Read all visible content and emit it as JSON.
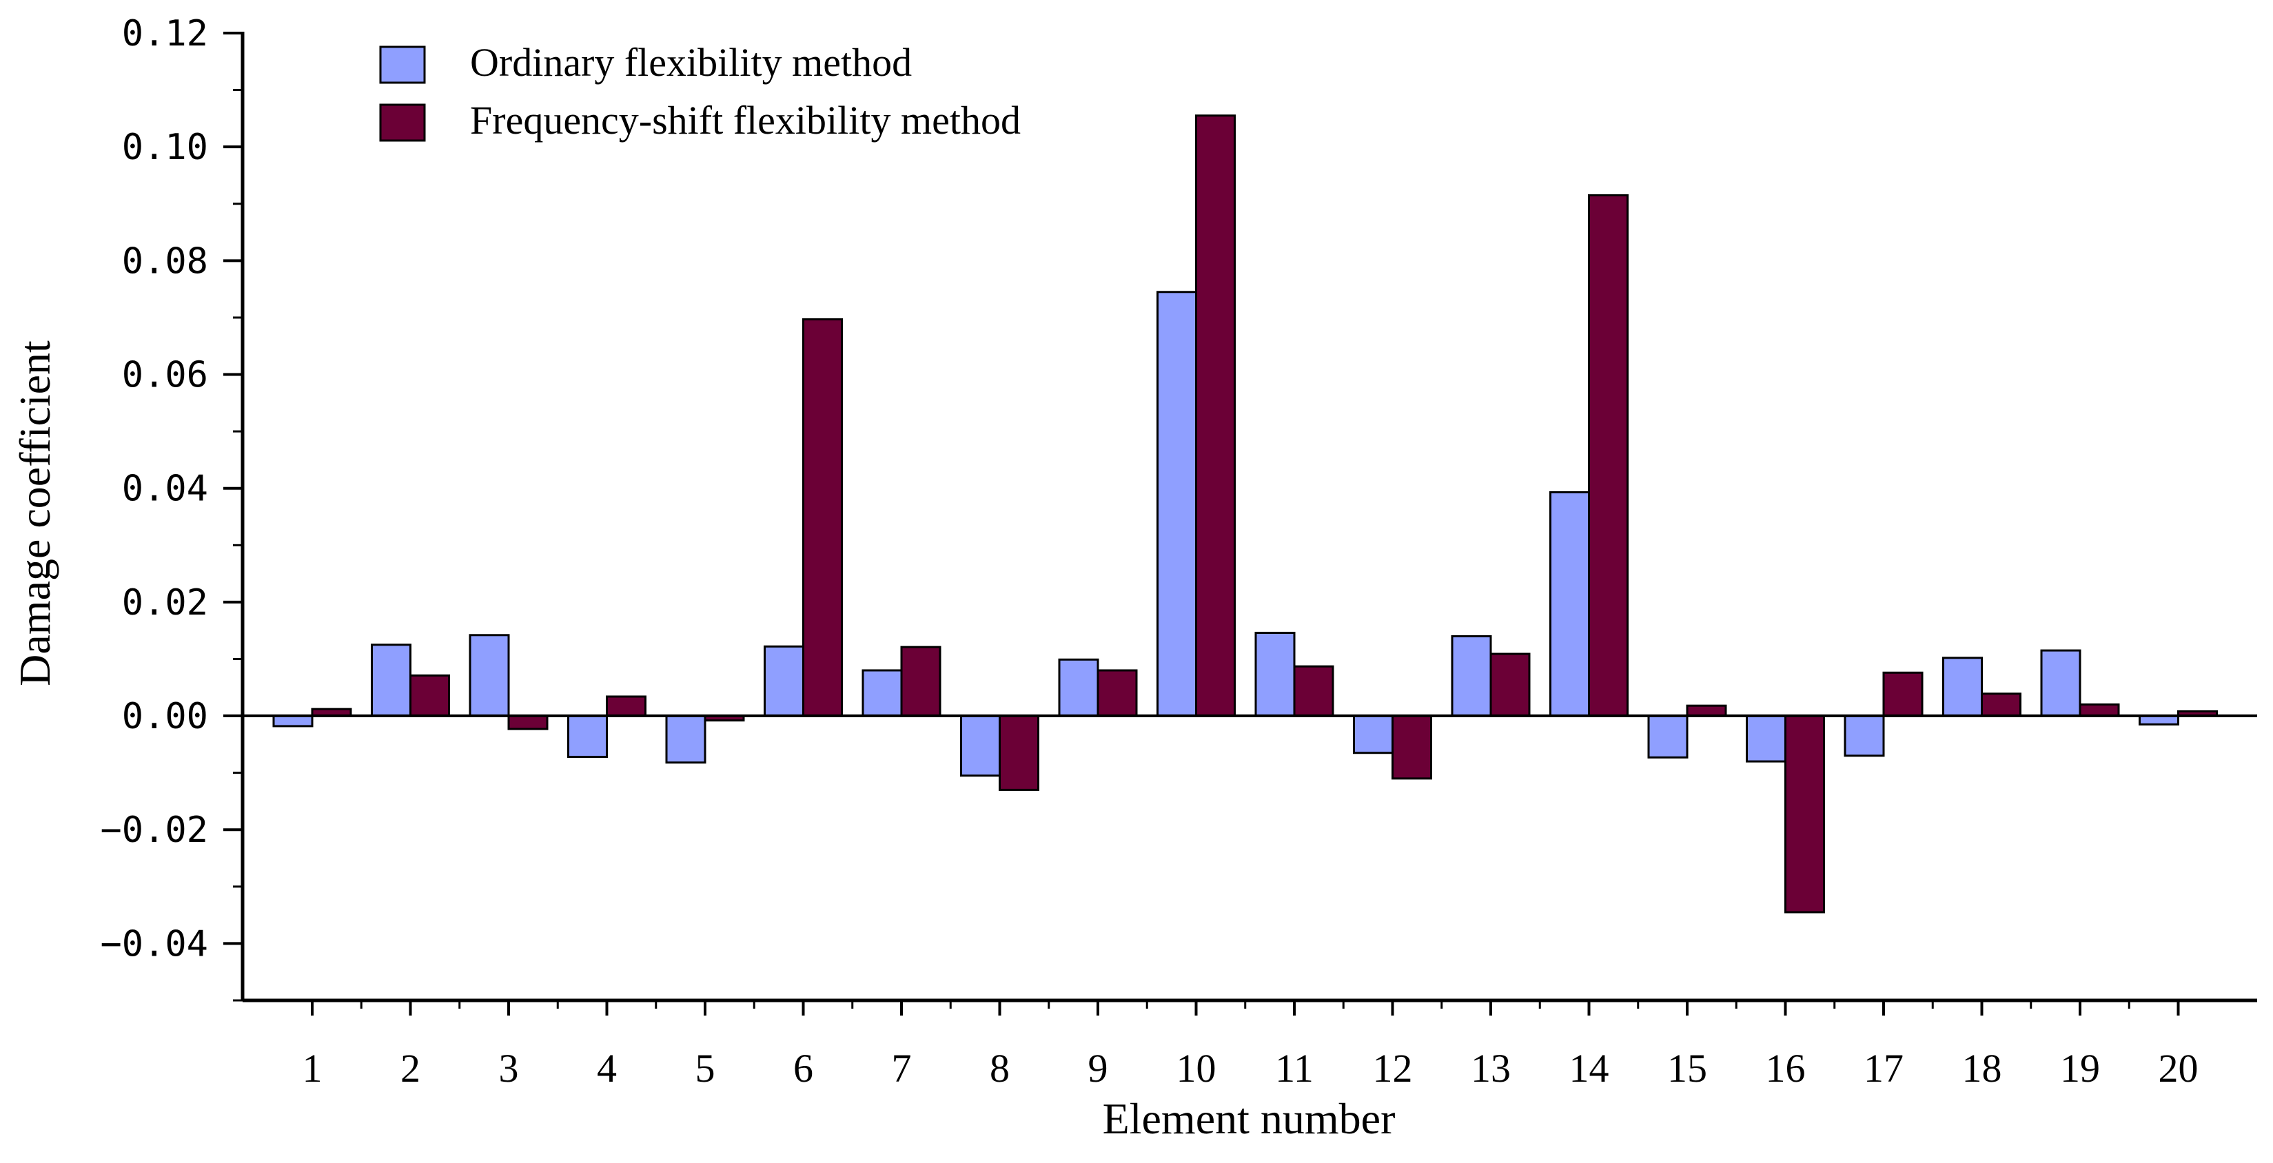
{
  "chart_data": {
    "type": "bar",
    "title": "",
    "xlabel": "Element number",
    "ylabel": "Damage coefficient",
    "ylim": [
      -0.05,
      0.12
    ],
    "yticks": [
      -0.04,
      -0.02,
      0.0,
      0.02,
      0.04,
      0.06,
      0.08,
      0.1,
      0.12
    ],
    "ytick_labels": [
      "−0.04",
      "−0.02",
      "0.00",
      "0.02",
      "0.04",
      "0.06",
      "0.08",
      "0.10",
      "0.12"
    ],
    "categories": [
      "1",
      "2",
      "3",
      "4",
      "5",
      "6",
      "7",
      "8",
      "9",
      "10",
      "11",
      "12",
      "13",
      "14",
      "15",
      "16",
      "17",
      "18",
      "19",
      "20"
    ],
    "legend_position": "top-left",
    "grid": false,
    "series": [
      {
        "name": "Ordinary flexibility method",
        "color": "#8f9fff",
        "values": [
          -0.0018,
          0.0125,
          0.0142,
          -0.0072,
          -0.0082,
          0.0122,
          0.008,
          -0.0105,
          0.0099,
          0.0745,
          0.0146,
          -0.0065,
          0.014,
          0.0393,
          -0.0073,
          -0.008,
          -0.007,
          0.0102,
          0.0115,
          -0.0015
        ]
      },
      {
        "name": "Frequency-shift flexibility method",
        "color": "#6b0036",
        "values": [
          0.0012,
          0.0071,
          -0.0023,
          0.0034,
          -0.0008,
          0.0697,
          0.0121,
          -0.013,
          0.008,
          0.1055,
          0.0087,
          -0.011,
          0.0109,
          0.0915,
          0.0018,
          -0.0345,
          0.0076,
          0.0039,
          0.002,
          0.0008
        ]
      }
    ]
  }
}
